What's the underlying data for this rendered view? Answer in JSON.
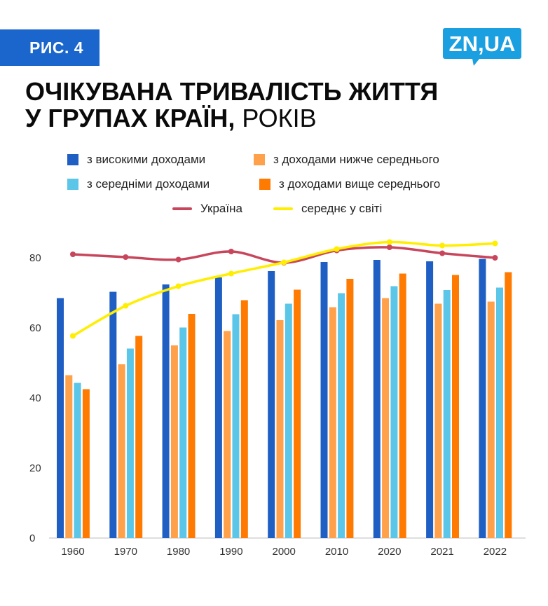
{
  "header": {
    "figure_label": "РИС. 4",
    "logo_text": "ZN,UA",
    "title_bold_line1": "ОЧІКУВАНА ТРИВАЛІСТЬ ЖИТТЯ",
    "title_bold_line2": "У ГРУПАХ КРАЇН,",
    "title_unit": " РОКІВ"
  },
  "colors": {
    "brand_blue": "#1a66cc",
    "high": "#1f5fc4",
    "lower_middle": "#ffa04a",
    "middle": "#5bc6e8",
    "upper_middle": "#ff7a00",
    "ukraine": "#c8465c",
    "world": "#ffee00"
  },
  "chart_data": {
    "type": "bar",
    "categories": [
      "1960",
      "1970",
      "1980",
      "1990",
      "2000",
      "2010",
      "2020",
      "2021",
      "2022"
    ],
    "series": [
      {
        "name": "з високими доходами",
        "kind": "bar",
        "color_key": "high",
        "values": [
          68.5,
          70.3,
          72.4,
          74.4,
          76.2,
          78.8,
          79.4,
          79.0,
          79.7
        ]
      },
      {
        "name": "з доходами нижче середнього",
        "kind": "bar",
        "color_key": "lower_middle",
        "values": [
          46.5,
          49.6,
          55.0,
          59.1,
          62.2,
          65.9,
          68.5,
          66.9,
          67.5
        ]
      },
      {
        "name": "з середніми доходами",
        "kind": "bar",
        "color_key": "middle",
        "values": [
          44.3,
          54.1,
          60.1,
          63.9,
          66.9,
          69.9,
          71.9,
          70.8,
          71.5
        ]
      },
      {
        "name": "з доходами вище середнього",
        "kind": "bar",
        "color_key": "upper_middle",
        "values": [
          42.5,
          57.7,
          64.0,
          67.9,
          70.9,
          74.0,
          75.5,
          75.1,
          75.9
        ]
      },
      {
        "name": "Україна",
        "kind": "line",
        "color_key": "ukraine",
        "values": [
          81.0,
          80.2,
          79.5,
          81.8,
          78.6,
          82.1,
          83.0,
          81.3,
          80.0
        ]
      },
      {
        "name": "середнє у світі",
        "kind": "line",
        "color_key": "world",
        "values": [
          57.7,
          66.3,
          71.9,
          75.5,
          78.7,
          82.5,
          84.5,
          83.5,
          84.1
        ]
      }
    ],
    "ylim": [
      0,
      85
    ],
    "yticks": [
      0,
      20,
      40,
      60,
      80
    ],
    "grid": false,
    "legend_position": "top"
  }
}
